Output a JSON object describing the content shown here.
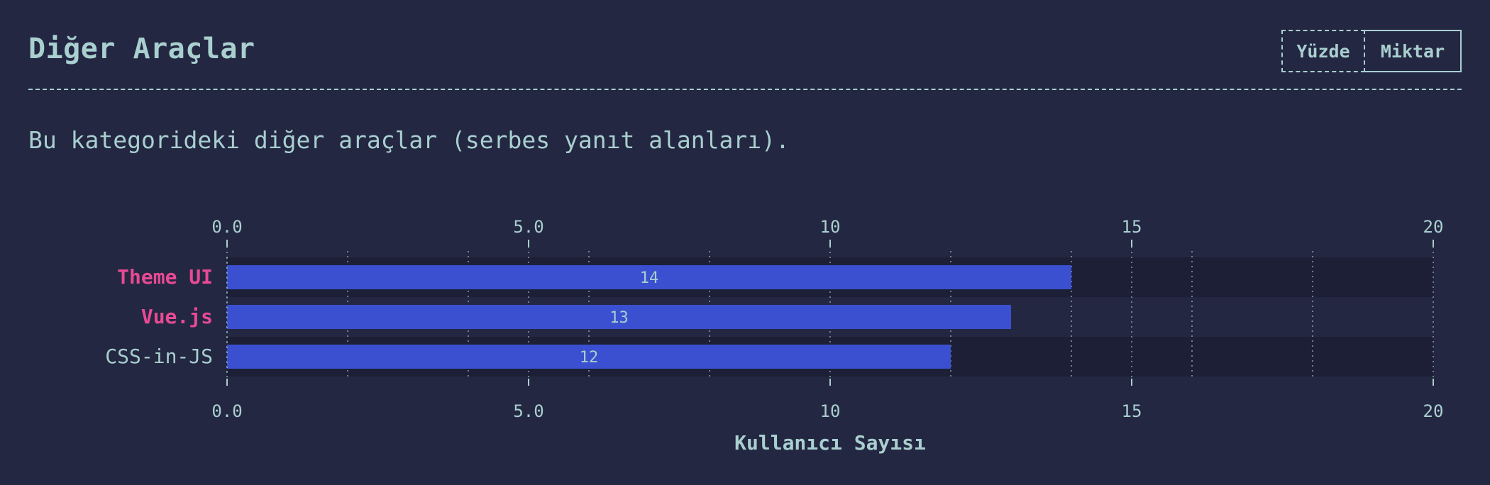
{
  "header": {
    "title": "Diğer Araçlar",
    "toggle": {
      "percent_label": "Yüzde",
      "amount_label": "Miktar"
    }
  },
  "description": "Bu kategorideki diğer araçlar (serbes yanıt alanları).",
  "colors": {
    "background": "#232742",
    "text": "#a9cfcf",
    "bar": "#3a50d0",
    "highlight_label": "#e84a95",
    "row_dark": "#1c1f35",
    "row_light": "#232742"
  },
  "chart_data": {
    "type": "bar",
    "orientation": "horizontal",
    "categories": [
      "Theme UI",
      "Vue.js",
      "CSS-in-JS"
    ],
    "values": [
      14,
      13,
      12
    ],
    "highlighted": [
      true,
      true,
      false
    ],
    "xlabel": "Kullanıcı Sayısı",
    "xlim": [
      0,
      20
    ],
    "ticks": [
      0,
      5,
      10,
      15,
      20
    ],
    "tick_labels": [
      "0.0",
      "5.0",
      "10",
      "15",
      "20"
    ],
    "minor_gridlines": [
      2,
      4,
      6,
      8,
      12,
      14,
      16,
      18
    ],
    "grid": true,
    "axis_position": "top-and-bottom"
  }
}
